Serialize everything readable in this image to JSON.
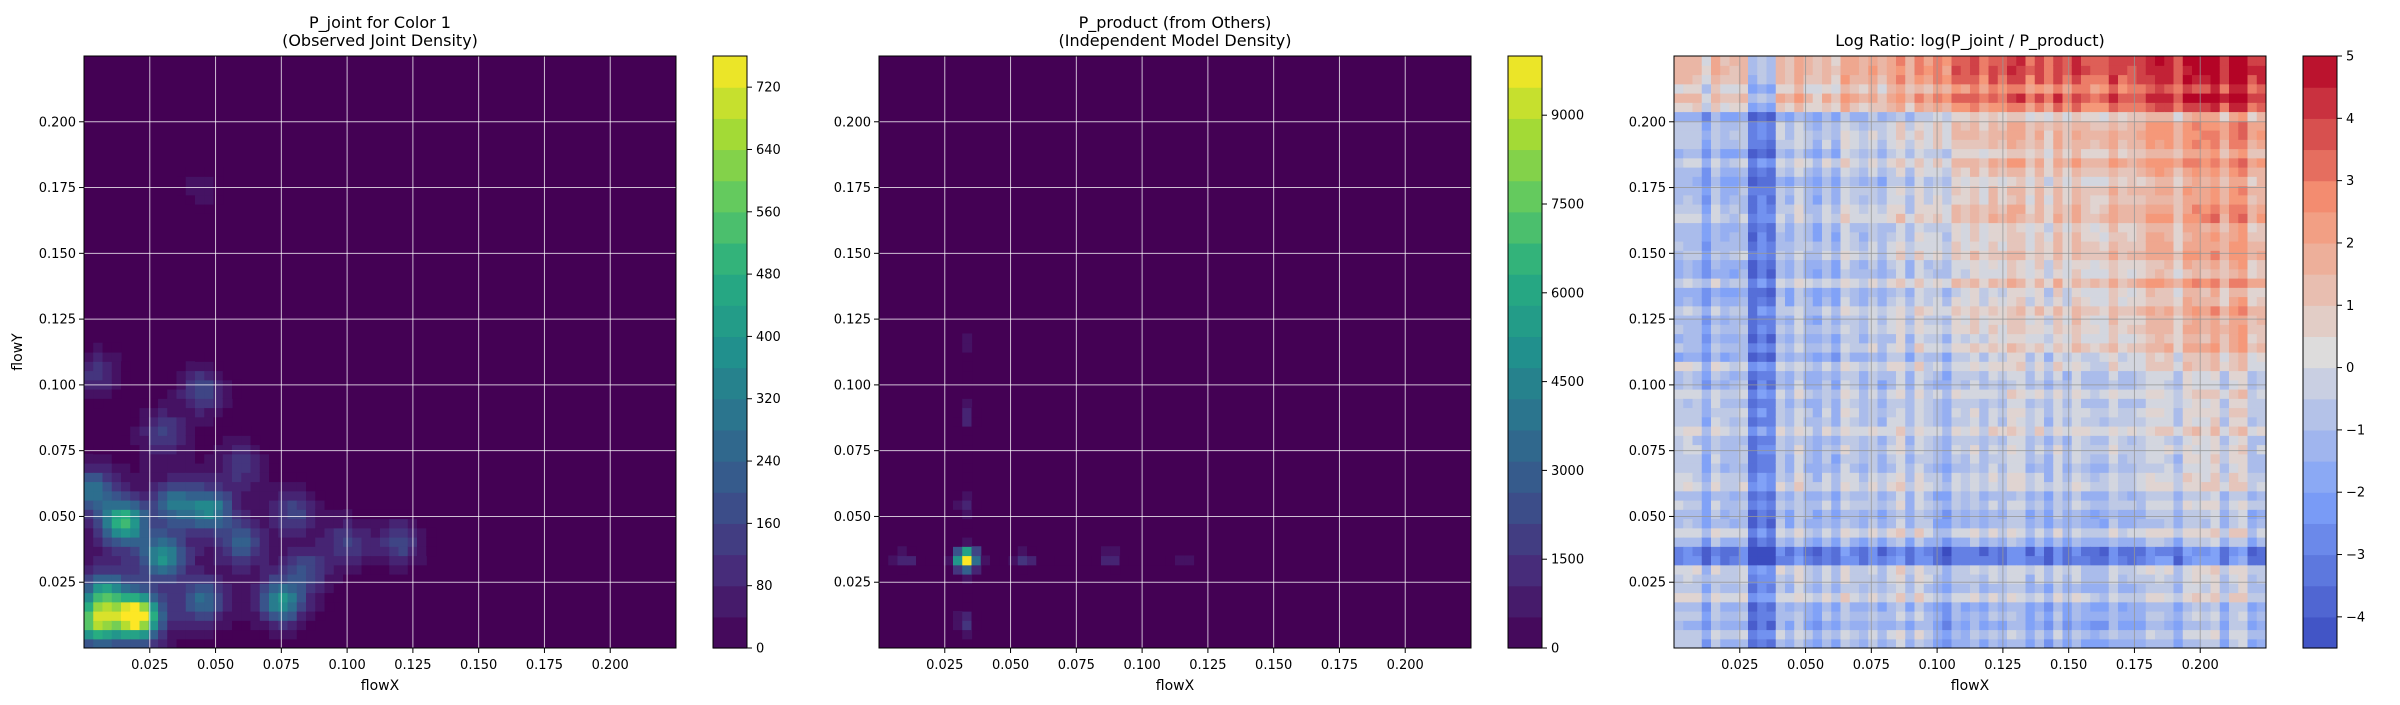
{
  "chart_data": [
    {
      "type": "heatmap",
      "title": "P_joint for Color 1\n(Observed Joint Density)",
      "xlabel": "flowX",
      "ylabel": "flowY",
      "xlim": [
        0.0,
        0.225
      ],
      "ylim": [
        0.0,
        0.225
      ],
      "xticks": [
        "0.025",
        "0.050",
        "0.075",
        "0.100",
        "0.125",
        "0.150",
        "0.175",
        "0.200"
      ],
      "yticks": [
        "0.025",
        "0.050",
        "0.075",
        "0.100",
        "0.125",
        "0.150",
        "0.175",
        "0.200"
      ],
      "grid": true,
      "colormap": "viridis",
      "colorbar": {
        "min": 0,
        "max": 760,
        "ticks": [
          "0",
          "80",
          "160",
          "240",
          "320",
          "400",
          "480",
          "560",
          "640",
          "720"
        ]
      },
      "peaks": [
        {
          "x": 0.02,
          "y": 0.012,
          "value": 740
        },
        {
          "x": 0.005,
          "y": 0.01,
          "value": 520
        },
        {
          "x": 0.008,
          "y": 0.02,
          "value": 330
        },
        {
          "x": 0.015,
          "y": 0.048,
          "value": 460
        },
        {
          "x": 0.03,
          "y": 0.035,
          "value": 330
        },
        {
          "x": 0.035,
          "y": 0.055,
          "value": 250
        },
        {
          "x": 0.048,
          "y": 0.053,
          "value": 300
        },
        {
          "x": 0.045,
          "y": 0.018,
          "value": 250
        },
        {
          "x": 0.06,
          "y": 0.04,
          "value": 200
        },
        {
          "x": 0.075,
          "y": 0.018,
          "value": 360
        },
        {
          "x": 0.08,
          "y": 0.052,
          "value": 160
        },
        {
          "x": 0.06,
          "y": 0.07,
          "value": 130
        },
        {
          "x": 0.045,
          "y": 0.098,
          "value": 180
        },
        {
          "x": 0.03,
          "y": 0.082,
          "value": 150
        },
        {
          "x": 0.005,
          "y": 0.105,
          "value": 130
        },
        {
          "x": 0.003,
          "y": 0.06,
          "value": 260
        },
        {
          "x": 0.1,
          "y": 0.04,
          "value": 140
        },
        {
          "x": 0.12,
          "y": 0.04,
          "value": 170
        },
        {
          "x": 0.085,
          "y": 0.03,
          "value": 150
        },
        {
          "x": 0.045,
          "y": 0.175,
          "value": 60
        }
      ]
    },
    {
      "type": "heatmap",
      "title": "P_product (from Others)\n(Independent Model Density)",
      "xlabel": "flowX",
      "ylabel": "",
      "xlim": [
        0.0,
        0.225
      ],
      "ylim": [
        0.0,
        0.225
      ],
      "xticks": [
        "0.025",
        "0.050",
        "0.075",
        "0.100",
        "0.125",
        "0.150",
        "0.175",
        "0.200"
      ],
      "yticks": [
        "0.025",
        "0.050",
        "0.075",
        "0.100",
        "0.125",
        "0.150",
        "0.175",
        "0.200"
      ],
      "grid": true,
      "colormap": "viridis",
      "colorbar": {
        "min": 0,
        "max": 10000,
        "ticks": [
          "0",
          "1500",
          "3000",
          "4500",
          "6000",
          "7500",
          "9000"
        ]
      },
      "peaks": [
        {
          "x": 0.033,
          "y": 0.034,
          "value": 9800
        },
        {
          "x": 0.033,
          "y": 0.01,
          "value": 1500
        },
        {
          "x": 0.033,
          "y": 0.055,
          "value": 1200
        },
        {
          "x": 0.033,
          "y": 0.088,
          "value": 1100
        },
        {
          "x": 0.01,
          "y": 0.034,
          "value": 1100
        },
        {
          "x": 0.055,
          "y": 0.034,
          "value": 1500
        },
        {
          "x": 0.088,
          "y": 0.034,
          "value": 1100
        },
        {
          "x": 0.117,
          "y": 0.034,
          "value": 400
        },
        {
          "x": 0.033,
          "y": 0.117,
          "value": 400
        }
      ]
    },
    {
      "type": "heatmap",
      "title": "Log Ratio: log(P_joint / P_product)",
      "xlabel": "flowX",
      "ylabel": "",
      "xlim": [
        0.0,
        0.225
      ],
      "ylim": [
        0.0,
        0.225
      ],
      "xticks": [
        "0.025",
        "0.050",
        "0.075",
        "0.100",
        "0.125",
        "0.150",
        "0.175",
        "0.200"
      ],
      "yticks": [
        "0.025",
        "0.050",
        "0.075",
        "0.100",
        "0.125",
        "0.150",
        "0.175",
        "0.200"
      ],
      "grid": true,
      "colormap": "coolwarm",
      "colorbar": {
        "min": -4.5,
        "max": 5,
        "ticks": [
          "−4",
          "−3",
          "−2",
          "−1",
          "0",
          "1",
          "2",
          "3",
          "4",
          "5"
        ]
      }
    }
  ]
}
